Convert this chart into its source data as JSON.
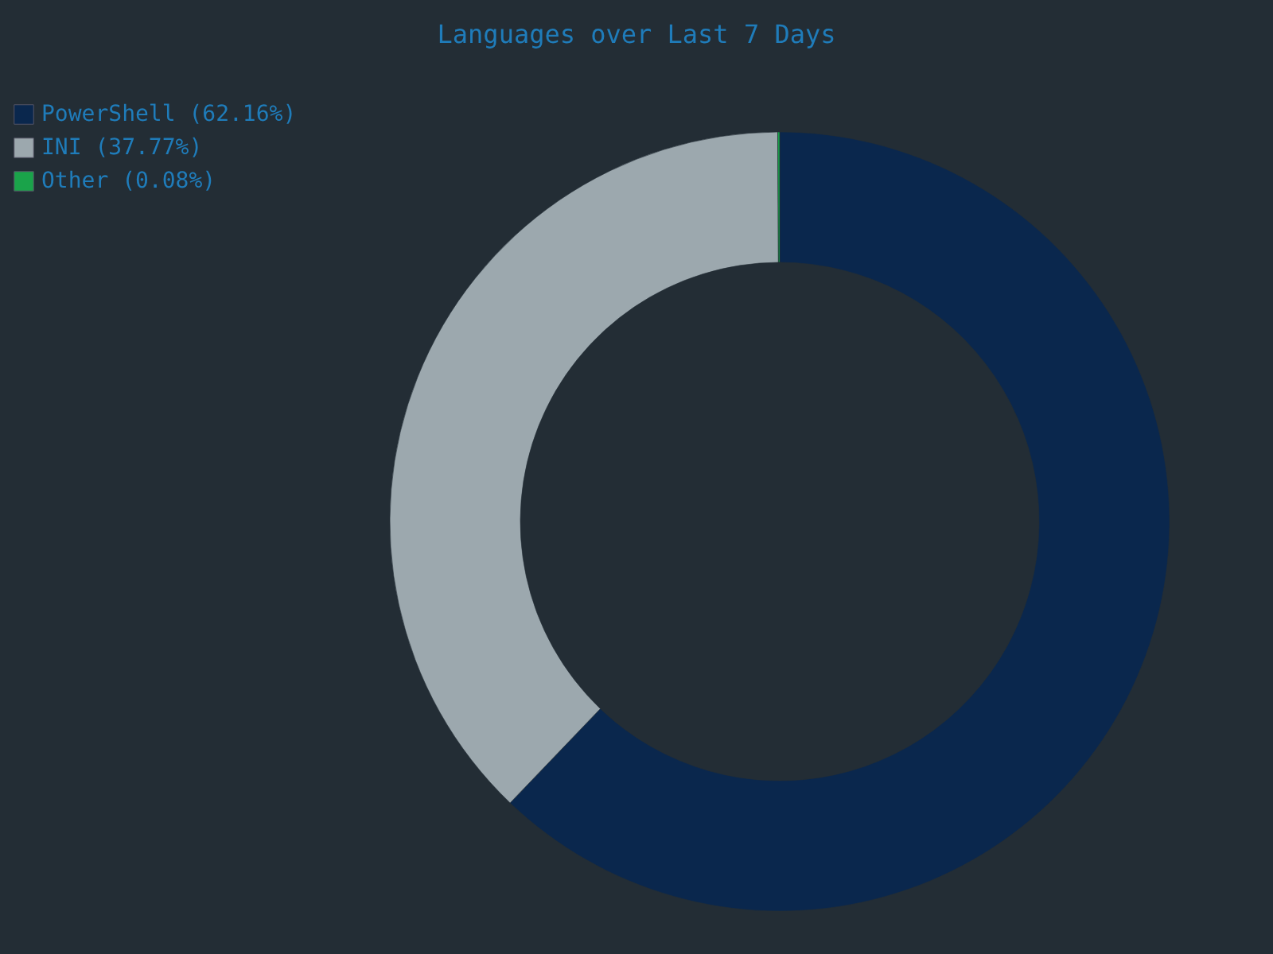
{
  "chart_data": {
    "type": "donut",
    "title": "Languages over Last 7 Days",
    "categories": [
      "PowerShell (62.16%)",
      "INI (37.77%)",
      "Other (0.08%)"
    ],
    "values": [
      62.16,
      37.77,
      0.08
    ],
    "colors": [
      "#0a274d",
      "#9ca8ae",
      "#1aa34a"
    ],
    "legend": "top left"
  }
}
